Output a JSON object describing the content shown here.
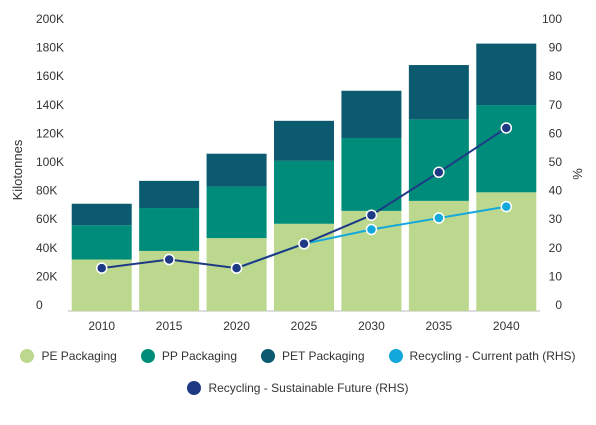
{
  "chart_data": {
    "type": "bar",
    "stacked": true,
    "categories": [
      "2010",
      "2015",
      "2020",
      "2025",
      "2030",
      "2035",
      "2040"
    ],
    "series": [
      {
        "name": "PE Packaging",
        "type": "bar",
        "axis": "left",
        "color": "#bcd88f",
        "values": [
          36000,
          42000,
          51000,
          61000,
          70000,
          77000,
          83000
        ]
      },
      {
        "name": "PP Packaging",
        "type": "bar",
        "axis": "left",
        "color": "#008c7a",
        "values": [
          24000,
          30000,
          36000,
          44000,
          51000,
          57000,
          61000
        ]
      },
      {
        "name": "PET Packaging",
        "type": "bar",
        "axis": "left",
        "color": "#0b5a6f",
        "values": [
          15000,
          19000,
          23000,
          28000,
          33000,
          38000,
          43000
        ]
      },
      {
        "name": "Recycling - Current path (RHS)",
        "type": "line",
        "axis": "right",
        "color": "#13a8db",
        "values": [
          null,
          null,
          15.0,
          23.5,
          28.5,
          32.5,
          36.5
        ]
      },
      {
        "name": "Recycling - Sustainable Future (RHS)",
        "type": "line",
        "axis": "right",
        "color": "#1e3a84",
        "values": [
          15.0,
          18.0,
          15.0,
          23.5,
          33.5,
          48.5,
          64.0
        ]
      }
    ],
    "ylabel": "Kilotonnes",
    "y2label": "%",
    "ylim": [
      0,
      200000
    ],
    "y2lim": [
      0,
      100
    ],
    "y_ticks": [
      "0",
      "20K",
      "40K",
      "60K",
      "80K",
      "100K",
      "120K",
      "140K",
      "160K",
      "180K",
      "200K"
    ],
    "y2_ticks": [
      "0",
      "10",
      "20",
      "30",
      "40",
      "50",
      "60",
      "70",
      "80",
      "90",
      "100"
    ],
    "grid": false,
    "legend_position": "bottom"
  }
}
